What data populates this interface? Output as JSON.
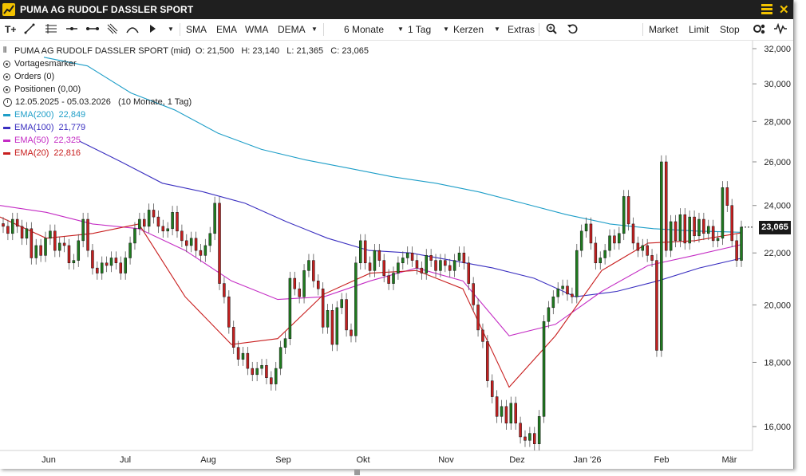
{
  "window": {
    "title": "PUMA AG RUDOLF DASSLER SPORT"
  },
  "toolbar": {
    "text_tool": "T+",
    "indicators": [
      "SMA",
      "EMA",
      "WMA",
      "DEMA"
    ],
    "period": "6 Monate",
    "interval": "1 Tag",
    "chart_type": "Kerzen",
    "extras": "Extras",
    "order_buttons": [
      "Market",
      "Limit",
      "Stop"
    ]
  },
  "legend": {
    "instrument": "PUMA AG RUDOLF DASSLER SPORT (mid)",
    "ohlc": "O: 21,500   H: 23,140   L: 21,365   C: 23,065",
    "vortagesmarker": "Vortagesmarker",
    "orders": "Orders (0)",
    "positions": "Positionen (0,00)",
    "range": "12.05.2025 - 05.03.2026   (10 Monate, 1 Tag)",
    "ema200": {
      "label": "EMA(200)",
      "value": "22,849",
      "color": "#1e9ec8"
    },
    "ema100": {
      "label": "EMA(100)",
      "value": "21,779",
      "color": "#3a2fc0"
    },
    "ema50": {
      "label": "EMA(50)",
      "value": "22,325",
      "color": "#c42cc4"
    },
    "ema20": {
      "label": "EMA(20)",
      "value": "22,816",
      "color": "#c81e1e"
    }
  },
  "price_badge": "23,065",
  "colors": {
    "up": "#1f7a1f",
    "down": "#c42020",
    "titlebar": "#1f1f1f",
    "accent": "#f2c200"
  },
  "chart_data": {
    "type": "candlestick",
    "y_ticks": [
      "16,000",
      "18,000",
      "20,000",
      "22,000",
      "24,000",
      "26,000",
      "28,000",
      "30,000",
      "32,000"
    ],
    "x_ticks": [
      "Jun",
      "Jul",
      "Aug",
      "Sep",
      "Okt",
      "Nov",
      "Dez",
      "Jan '26",
      "Feb",
      "Mär"
    ],
    "y_axis": "log",
    "ylim": [
      15000,
      33000
    ],
    "last_close": 23.065,
    "close_series": [
      23.1,
      22.8,
      23.4,
      23.1,
      22.6,
      23.0,
      21.8,
      22.3,
      21.9,
      22.6,
      22.9,
      22.1,
      22.4,
      22.3,
      21.6,
      21.7,
      22.5,
      23.4,
      22.1,
      21.4,
      21.2,
      21.6,
      21.5,
      21.8,
      21.6,
      21.2,
      21.8,
      22.4,
      23.0,
      23.4,
      23.1,
      23.8,
      23.5,
      23.1,
      22.9,
      23.0,
      23.7,
      22.9,
      22.5,
      22.3,
      22.6,
      22.1,
      21.9,
      22.3,
      22.8,
      24.1,
      20.8,
      20.3,
      19.2,
      18.5,
      18.1,
      18.3,
      17.8,
      17.6,
      17.8,
      17.9,
      17.5,
      17.3,
      17.8,
      18.5,
      18.8,
      21.0,
      20.6,
      20.3,
      21.3,
      21.7,
      20.9,
      20.6,
      19.2,
      19.8,
      18.6,
      19.9,
      20.2,
      19.1,
      18.9,
      21.6,
      22.5,
      21.6,
      21.3,
      22.1,
      21.7,
      21.1,
      20.8,
      21.2,
      21.6,
      21.8,
      22.0,
      21.7,
      21.4,
      21.2,
      21.9,
      21.7,
      21.3,
      21.7,
      21.5,
      21.3,
      21.7,
      22.0,
      21.6,
      20.8,
      20.0,
      19.1,
      18.7,
      17.4,
      16.9,
      16.3,
      16.6,
      16.1,
      16.7,
      16.1,
      15.7,
      15.6,
      15.8,
      15.5,
      16.3,
      19.4,
      19.9,
      20.3,
      20.6,
      20.7,
      20.4,
      20.3,
      22.1,
      22.9,
      23.2,
      22.4,
      21.6,
      21.8,
      22.1,
      22.7,
      22.4,
      22.8,
      24.4,
      23.2,
      22.4,
      22.1,
      22.3,
      21.9,
      21.7,
      18.4,
      26.0,
      22.1,
      23.3,
      22.5,
      23.6,
      22.4,
      23.5,
      22.7,
      23.4,
      22.8,
      23.1,
      22.5,
      22.6,
      24.8,
      24.0,
      22.5,
      21.7,
      23.065
    ],
    "series": [
      {
        "name": "EMA(200)",
        "values": [
          31.5,
          31.0,
          29.5,
          28.6,
          27.4,
          26.6,
          26.1,
          25.7,
          25.3,
          25.0,
          24.6,
          24.1,
          23.6,
          23.2,
          23.0,
          22.9,
          22.85
        ]
      },
      {
        "name": "EMA(100)",
        "values": [
          27.0,
          26.0,
          25.0,
          24.6,
          24.1,
          23.3,
          22.6,
          22.1,
          22.0,
          21.7,
          21.4,
          21.0,
          20.3,
          20.5,
          20.9,
          21.4,
          21.78
        ]
      },
      {
        "name": "EMA(50)",
        "values": [
          24.0,
          23.7,
          23.2,
          23.0,
          22.1,
          20.9,
          20.2,
          20.3,
          20.9,
          21.4,
          20.9,
          18.9,
          19.3,
          20.5,
          21.5,
          21.9,
          22.33
        ]
      },
      {
        "name": "EMA(20)",
        "values": [
          23.5,
          22.6,
          22.8,
          23.2,
          20.3,
          18.6,
          18.8,
          20.4,
          21.2,
          21.3,
          20.6,
          17.2,
          18.9,
          21.3,
          22.4,
          22.5,
          22.82
        ]
      }
    ]
  }
}
